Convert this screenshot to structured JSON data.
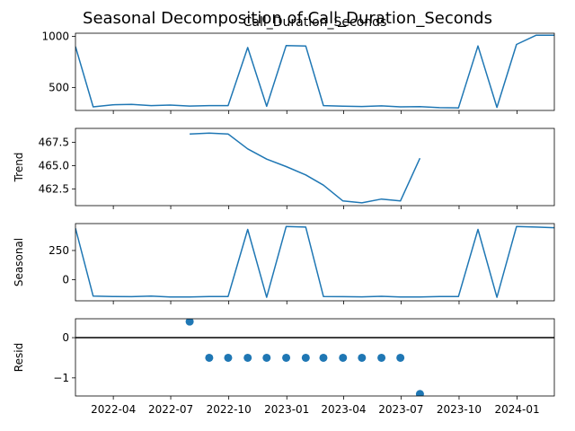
{
  "figure": {
    "suptitle": "Seasonal Decomposition of Call_Duration_Seconds",
    "colors": {
      "series": "#1f77b4",
      "axis": "#000000"
    }
  },
  "chart_data": [
    {
      "type": "line",
      "panel": "observed",
      "title": "Call_Duration_Seconds",
      "ylabel": "",
      "x": [
        "2022-01-31",
        "2022-02-28",
        "2022-03-31",
        "2022-04-30",
        "2022-05-31",
        "2022-06-30",
        "2022-07-31",
        "2022-08-31",
        "2022-09-30",
        "2022-10-31",
        "2022-11-30",
        "2022-12-31",
        "2023-01-31",
        "2023-02-28",
        "2023-03-31",
        "2023-04-30",
        "2023-05-31",
        "2023-06-30",
        "2023-07-31",
        "2023-08-31",
        "2023-09-30",
        "2023-10-31",
        "2023-11-30",
        "2023-12-31",
        "2024-01-31",
        "2024-02-29"
      ],
      "values": [
        900,
        310,
        330,
        335,
        322,
        328,
        318,
        322,
        322,
        890,
        315,
        910,
        905,
        322,
        316,
        314,
        320,
        310,
        312,
        302,
        300,
        905,
        305,
        920,
        1010,
        1010
      ],
      "ylim": [
        275,
        1030
      ],
      "yticks": [
        500,
        1000
      ],
      "ytick_labels": [
        "500",
        "1000"
      ]
    },
    {
      "type": "line",
      "panel": "trend",
      "title": "",
      "ylabel": "Trend",
      "x": [
        "2022-07-31",
        "2022-08-31",
        "2022-09-30",
        "2022-10-31",
        "2022-11-30",
        "2022-12-31",
        "2023-01-31",
        "2023-02-28",
        "2023-03-31",
        "2023-04-30",
        "2023-05-31",
        "2023-06-30",
        "2023-07-31"
      ],
      "values": [
        468.4,
        468.5,
        468.4,
        466.8,
        465.7,
        464.9,
        464.0,
        462.9,
        461.2,
        461.0,
        461.4,
        461.2,
        465.8
      ],
      "ylim": [
        460.7,
        469.0
      ],
      "yticks": [
        462.5,
        465.0,
        467.5
      ],
      "ytick_labels": [
        "462.5",
        "465.0",
        "467.5"
      ]
    },
    {
      "type": "line",
      "panel": "seasonal",
      "title": "",
      "ylabel": "Seasonal",
      "x": [
        "2022-01-31",
        "2022-02-28",
        "2022-03-31",
        "2022-04-30",
        "2022-05-31",
        "2022-06-30",
        "2022-07-31",
        "2022-08-31",
        "2022-09-30",
        "2022-10-31",
        "2022-11-30",
        "2022-12-31",
        "2023-01-31",
        "2023-02-28",
        "2023-03-31",
        "2023-04-30",
        "2023-05-31",
        "2023-06-30",
        "2023-07-31",
        "2023-08-31",
        "2023-09-30",
        "2023-10-31",
        "2023-11-30",
        "2023-12-31",
        "2024-01-31",
        "2024-02-29"
      ],
      "values": [
        440,
        -140,
        -143,
        -145,
        -140,
        -147,
        -147,
        -143,
        -143,
        430,
        -150,
        455,
        450,
        -143,
        -145,
        -146,
        -142,
        -148,
        -148,
        -143,
        -143,
        430,
        -150,
        455,
        450,
        445
      ],
      "ylim": [
        -180,
        480
      ],
      "yticks": [
        0,
        250
      ],
      "ytick_labels": [
        "0",
        "250"
      ]
    },
    {
      "type": "scatter",
      "panel": "resid",
      "title": "",
      "ylabel": "Resid",
      "x": [
        "2022-07-31",
        "2022-08-31",
        "2022-09-30",
        "2022-10-31",
        "2022-11-30",
        "2022-12-31",
        "2023-01-31",
        "2023-02-28",
        "2023-03-31",
        "2023-04-30",
        "2023-05-31",
        "2023-06-30",
        "2023-07-31"
      ],
      "values": [
        0.4,
        -0.5,
        -0.5,
        -0.5,
        -0.5,
        -0.5,
        -0.5,
        -0.5,
        -0.5,
        -0.5,
        -0.5,
        -0.5,
        -1.4
      ],
      "ylim": [
        -1.45,
        0.47
      ],
      "yticks": [
        -1,
        0
      ],
      "ytick_labels": [
        "−1",
        "0"
      ],
      "zero_line": true
    }
  ],
  "x_axis": {
    "range": [
      "2022-01-31",
      "2024-02-29"
    ],
    "ticks": [
      "2022-04-01",
      "2022-07-01",
      "2022-10-01",
      "2023-01-01",
      "2023-04-01",
      "2023-07-01",
      "2023-10-01",
      "2024-01-01"
    ],
    "tick_labels": [
      "2022-04",
      "2022-07",
      "2022-10",
      "2023-01",
      "2023-04",
      "2023-07",
      "2023-10",
      "2024-01"
    ]
  }
}
